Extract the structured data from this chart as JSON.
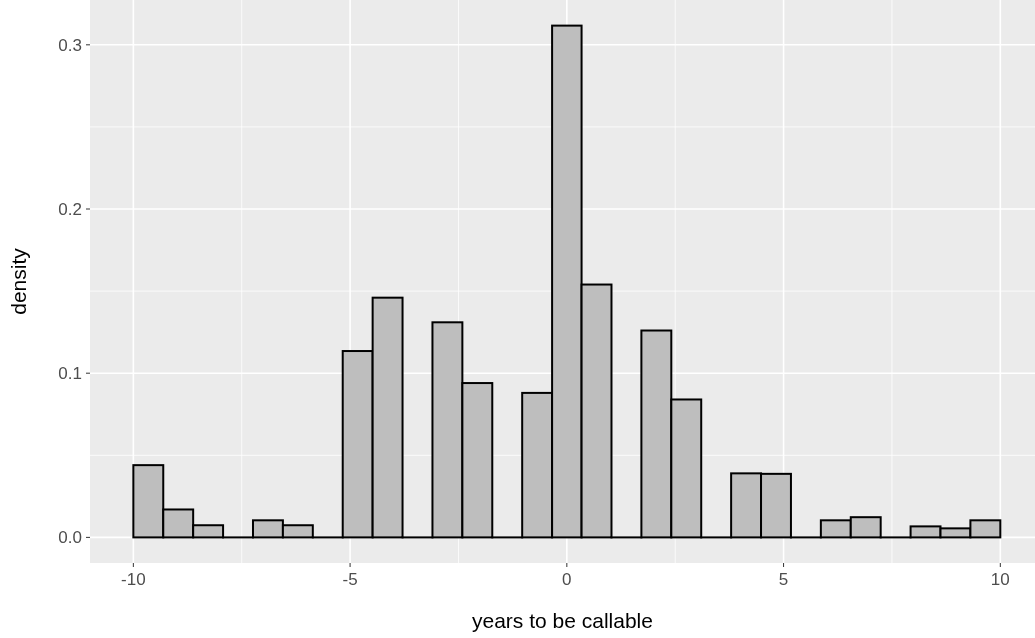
{
  "chart_data": {
    "type": "histogram",
    "xlabel": "years to be callable",
    "ylabel": "density",
    "bins": [
      -10,
      -9.31,
      -8.62,
      -7.93,
      -7.24,
      -6.55,
      -5.86,
      -5.17,
      -4.48,
      -3.79,
      -3.1,
      -2.41,
      -1.72,
      -1.03,
      -0.34,
      0.34,
      1.03,
      1.72,
      2.41,
      3.1,
      3.79,
      4.48,
      5.17,
      5.86,
      6.55,
      7.24,
      7.93,
      8.62,
      9.31,
      10
    ],
    "values": [
      0.044,
      0.017,
      0.0074,
      0,
      0.0104,
      0.0074,
      0,
      0.1135,
      0.146,
      0,
      0.131,
      0.094,
      0,
      0.088,
      0.3117,
      0.154,
      0,
      0.126,
      0.084,
      0,
      0.039,
      0.0387,
      0,
      0.0104,
      0.0123,
      0,
      0.0067,
      0.0055,
      0.0104
    ],
    "color": "#bebebe",
    "xlim": [
      -11,
      10.8
    ],
    "ylim": [
      -0.0156,
      0.3273
    ],
    "xticks": [
      -10,
      -5,
      0,
      5,
      10
    ],
    "yticks": [
      {
        "value": 0,
        "label": "0.0"
      },
      0.1,
      0.2,
      0.3
    ],
    "grid": true
  }
}
